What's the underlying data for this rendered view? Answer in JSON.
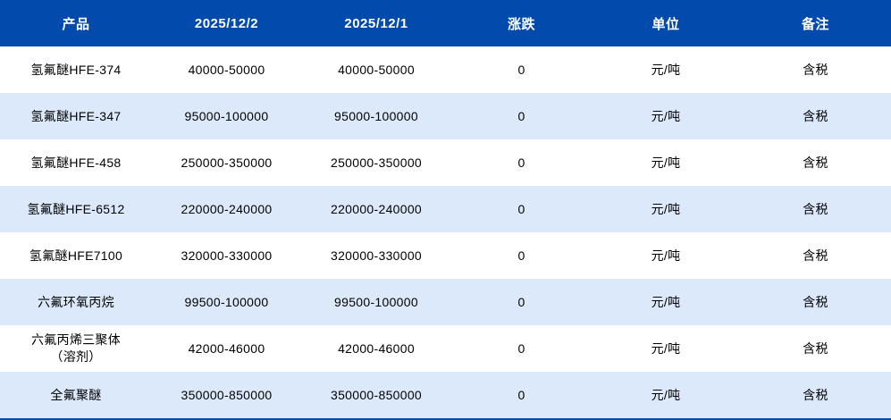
{
  "table": {
    "headers": [
      "产品",
      "2025/12/2",
      "2025/12/1",
      "涨跌",
      "单位",
      "备注"
    ],
    "rows": [
      [
        "氢氟醚HFE-374",
        "40000-50000",
        "40000-50000",
        "0",
        "元/吨",
        "含税"
      ],
      [
        "氢氟醚HFE-347",
        "95000-100000",
        "95000-100000",
        "0",
        "元/吨",
        "含税"
      ],
      [
        "氢氟醚HFE-458",
        "250000-350000",
        "250000-350000",
        "0",
        "元/吨",
        "含税"
      ],
      [
        "氢氟醚HFE-6512",
        "220000-240000",
        "220000-240000",
        "0",
        "元/吨",
        "含税"
      ],
      [
        "氢氟醚HFE7100",
        "320000-330000",
        "320000-330000",
        "0",
        "元/吨",
        "含税"
      ],
      [
        "六氟环氧丙烷",
        "99500-100000",
        "99500-100000",
        "0",
        "元/吨",
        "含税"
      ],
      [
        "六氟丙烯三聚体\n（溶剂）",
        "42000-46000",
        "42000-46000",
        "0",
        "元/吨",
        "含税"
      ],
      [
        "全氟聚醚",
        "350000-850000",
        "350000-850000",
        "0",
        "元/吨",
        "含税"
      ]
    ]
  },
  "colors": {
    "header_bg": "#024aab",
    "alt_row_bg": "#dce9fb"
  }
}
